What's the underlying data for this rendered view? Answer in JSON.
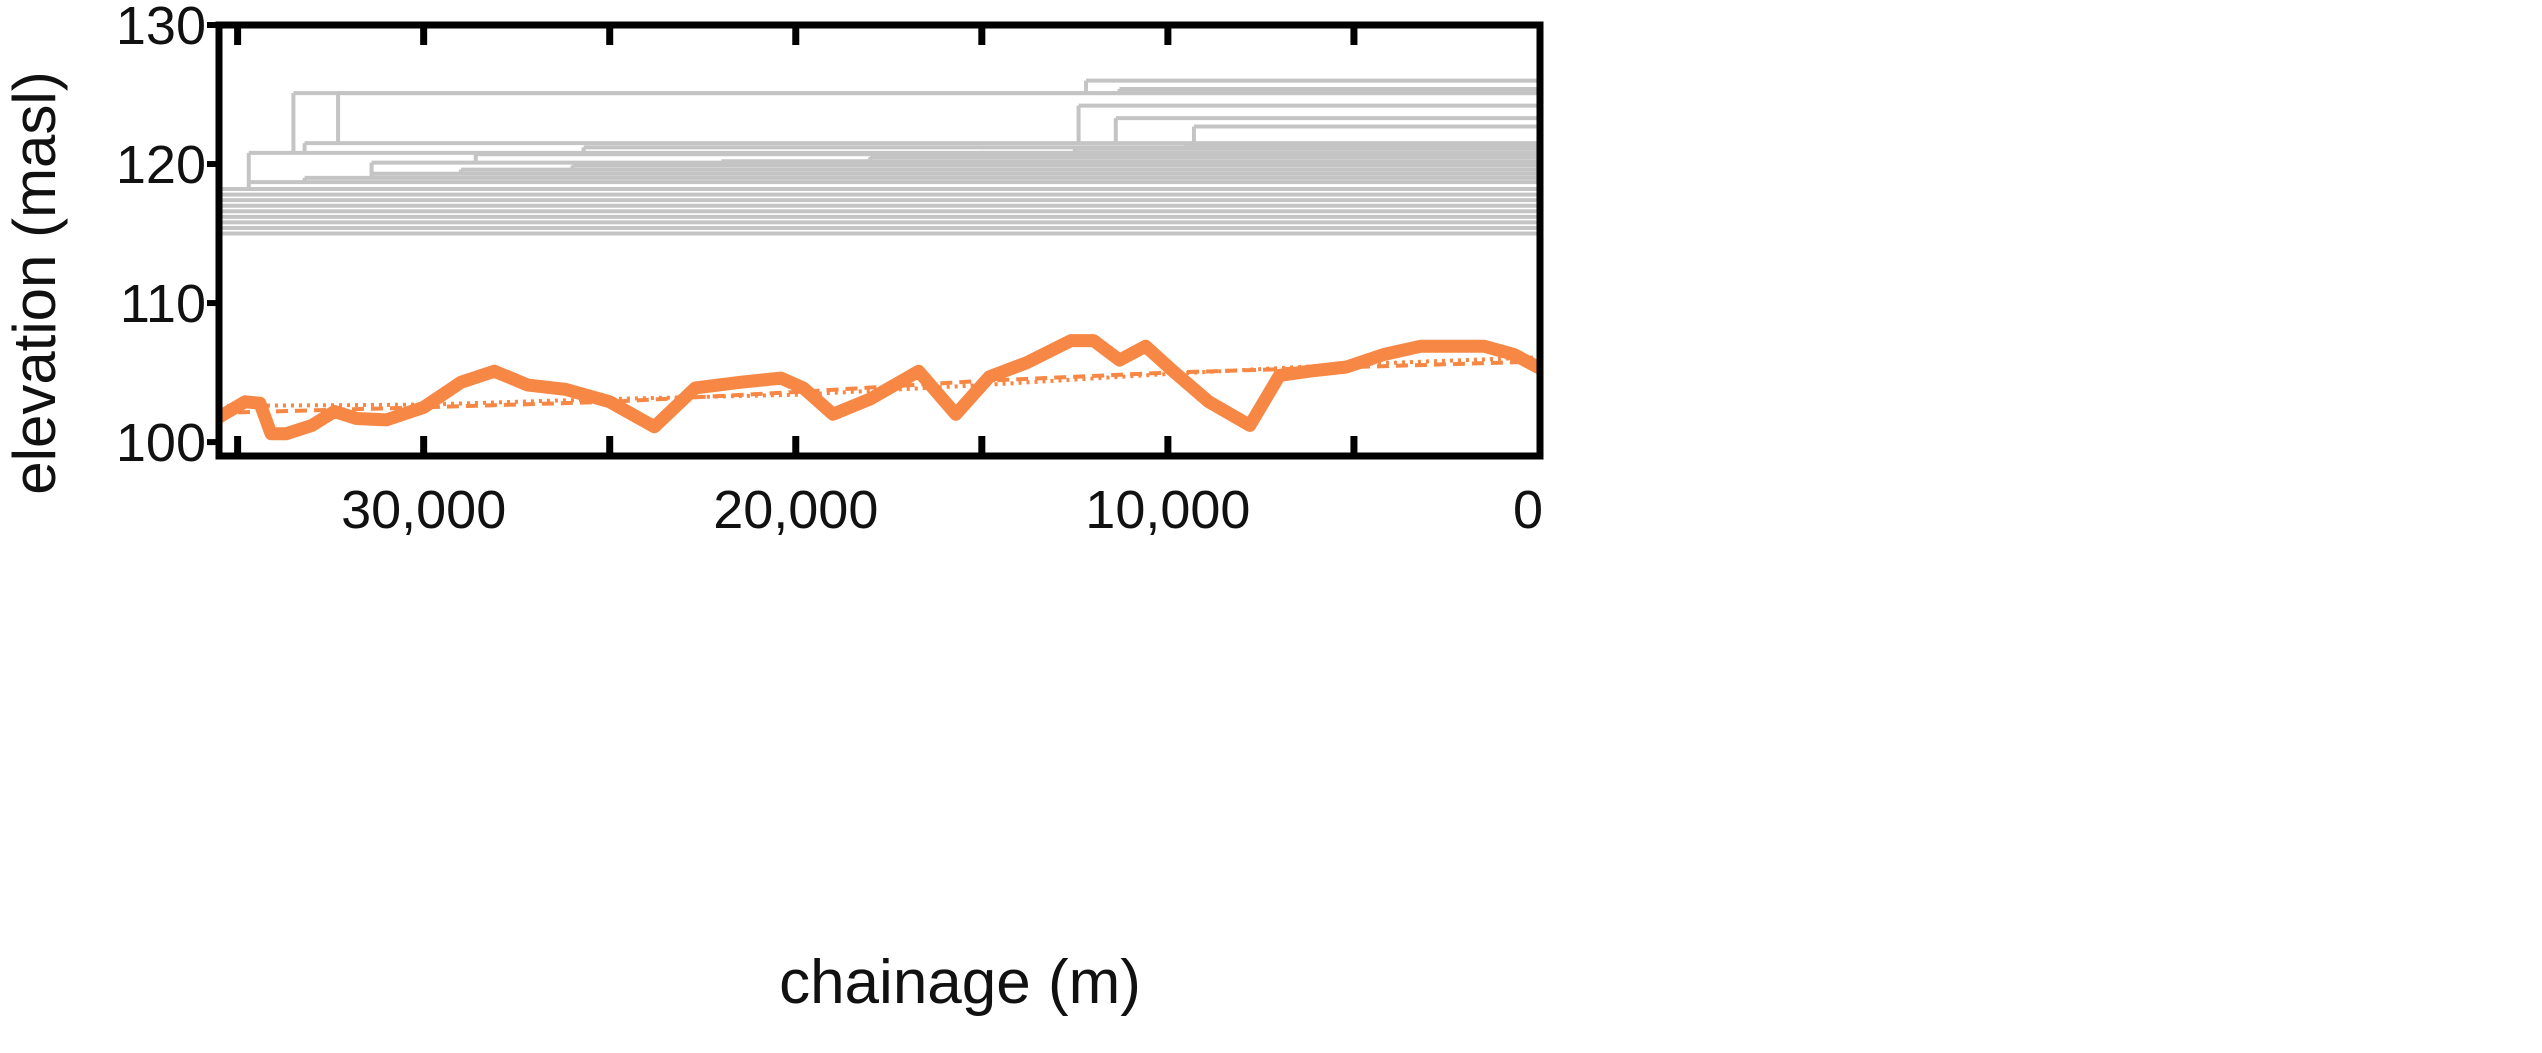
{
  "chart_data": {
    "type": "line",
    "title": "",
    "xlabel": "chainage (m)",
    "ylabel": "elevation (masl)",
    "x_reversed": true,
    "xlim": [
      35500,
      0
    ],
    "ylim": [
      99,
      130
    ],
    "x_ticks": [
      30000,
      20000,
      10000,
      0
    ],
    "x_tick_labels": [
      "30,000",
      "20,000",
      "10,000",
      "0"
    ],
    "y_ticks": [
      100,
      110,
      120,
      130
    ],
    "y_tick_labels": [
      "100",
      "110",
      "120",
      "130"
    ],
    "grid": false,
    "legend": "none",
    "colors": {
      "surfaces": "#c4c4c4",
      "bed": "#f78745",
      "axis": "#000000"
    },
    "series": [
      {
        "style": "solid-thick",
        "x": [
          35500,
          34800,
          34400,
          34100,
          33700,
          33000,
          32400,
          31800,
          31000,
          30000,
          29000,
          28100,
          27200,
          26200,
          25000,
          23800,
          22700,
          21500,
          20400,
          19800,
          19000,
          18000,
          16700,
          15700,
          14800,
          13800,
          12600,
          12000,
          11300,
          10600,
          9900,
          8900,
          7800,
          7000,
          6200,
          5200,
          4200,
          3200,
          1500,
          700,
          0
        ],
        "y": [
          101.8,
          102.9,
          102.8,
          100.6,
          100.6,
          101.2,
          102.2,
          101.7,
          101.6,
          102.5,
          104.3,
          105.1,
          104.1,
          103.8,
          102.9,
          101.1,
          103.9,
          104.3,
          104.6,
          103.9,
          102.0,
          103.1,
          105.1,
          102.0,
          104.7,
          105.7,
          107.3,
          107.3,
          105.9,
          106.9,
          105.2,
          102.9,
          101.2,
          104.8,
          105.1,
          105.4,
          106.3,
          106.9,
          106.9,
          106.3,
          105.3
        ]
      },
      {
        "style": "dashed",
        "x": [
          35500,
          30000,
          25000,
          20000,
          15000,
          10000,
          5000,
          0
        ],
        "y": [
          102.1,
          102.5,
          102.9,
          103.6,
          104.4,
          105.0,
          105.4,
          105.8
        ]
      },
      {
        "style": "dotted",
        "x": [
          35500,
          30000,
          25000,
          20000,
          15000,
          10000,
          5000,
          0
        ],
        "y": [
          102.6,
          102.7,
          103.1,
          103.4,
          104.1,
          104.9,
          105.6,
          106.1
        ]
      }
    ],
    "surfaces": {
      "style": "stepped-gray",
      "levels": [
        {
          "x_start": 35500,
          "y": 115.0
        },
        {
          "x_start": 35500,
          "y": 115.4
        },
        {
          "x_start": 35500,
          "y": 115.8
        },
        {
          "x_start": 35500,
          "y": 116.2
        },
        {
          "x_start": 35500,
          "y": 116.6
        },
        {
          "x_start": 35500,
          "y": 117.0
        },
        {
          "x_start": 35500,
          "y": 117.4
        },
        {
          "x_start": 35500,
          "y": 117.8
        },
        {
          "x_start": 35500,
          "y": 118.2
        },
        {
          "x_start": 34700,
          "y": 118.7
        },
        {
          "x_start": 33200,
          "y": 119.0
        },
        {
          "x_start": 31400,
          "y": 119.3
        },
        {
          "x_start": 29000,
          "y": 119.6
        },
        {
          "x_start": 26000,
          "y": 119.9
        },
        {
          "x_start": 22000,
          "y": 120.2
        },
        {
          "x_start": 18000,
          "y": 120.5
        },
        {
          "x_start": 15000,
          "y": 120.8
        },
        {
          "x_start": 12500,
          "y": 121.1
        },
        {
          "x_start": 9500,
          "y": 121.4
        },
        {
          "x_start": 34700,
          "y": 120.8
        },
        {
          "x_start": 33200,
          "y": 121.5
        },
        {
          "x_start": 31400,
          "y": 120.1
        },
        {
          "x_start": 28600,
          "y": 120.7
        },
        {
          "x_start": 25700,
          "y": 121.2
        },
        {
          "x_start": 33500,
          "y": 125.1
        },
        {
          "x_start": 32300,
          "y": 125.1
        },
        {
          "x_start": 12200,
          "y": 126.0
        },
        {
          "x_start": 11300,
          "y": 125.4
        },
        {
          "x_start": 12400,
          "y": 124.2
        },
        {
          "x_start": 11400,
          "y": 123.3
        },
        {
          "x_start": 9300,
          "y": 122.7
        }
      ]
    }
  }
}
